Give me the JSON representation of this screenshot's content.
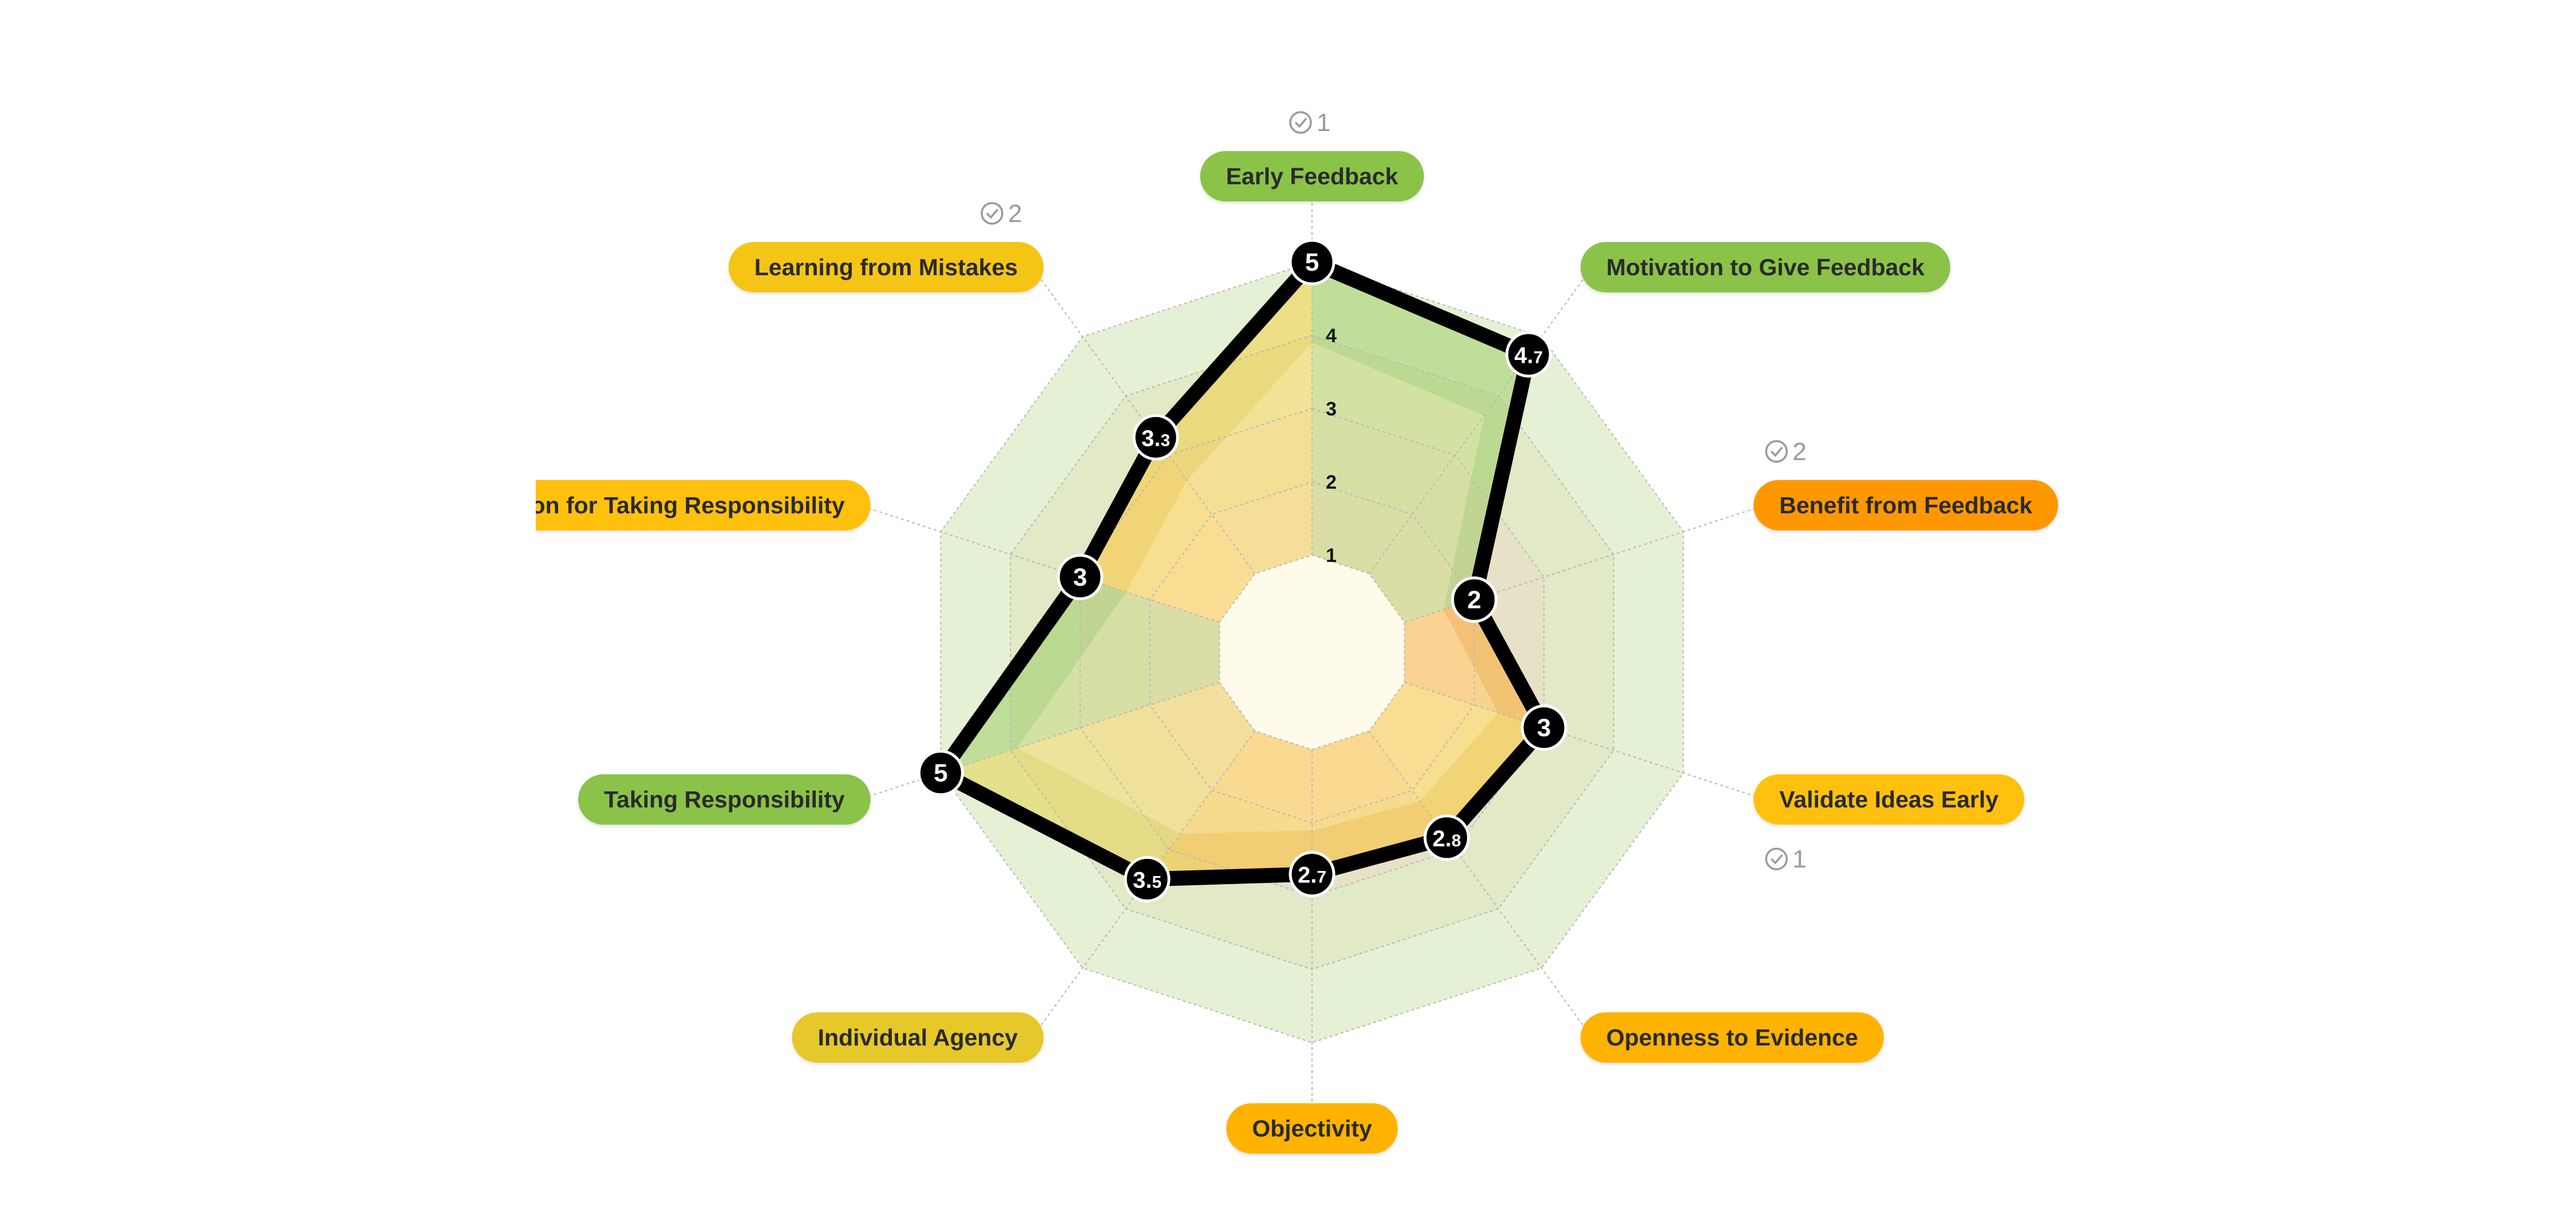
{
  "chart_data": {
    "type": "radar",
    "title": "",
    "rlim": [
      0,
      5
    ],
    "ring_ticks": [
      1,
      2,
      3,
      4,
      5
    ],
    "ring_tick_labels": [
      "1",
      "2",
      "3",
      "4"
    ],
    "categories": [
      {
        "label": "Early Feedback",
        "color": "#8BC34A",
        "checks": 1
      },
      {
        "label": "Motivation to Give Feedback",
        "color": "#8BC34A",
        "checks": null
      },
      {
        "label": "Benefit from Feedback",
        "color": "#FF9800",
        "checks": 2
      },
      {
        "label": "Validate Ideas Early",
        "color": "#FFC107",
        "checks": 1
      },
      {
        "label": "Openness to Evidence",
        "color": "#FFB300",
        "checks": null
      },
      {
        "label": "Objectivity",
        "color": "#FFB300",
        "checks": null
      },
      {
        "label": "Individual Agency",
        "color": "#E6C82A",
        "checks": null
      },
      {
        "label": "Taking Responsibility",
        "color": "#8BC34A",
        "checks": null
      },
      {
        "label": "Motivation for Taking Responsibility",
        "color": "#FFC107",
        "checks": null
      },
      {
        "label": "Learning from Mistakes",
        "color": "#F5C518",
        "checks": 2
      }
    ],
    "series": [
      {
        "values": [
          5,
          4.7,
          2,
          3,
          2.8,
          2.7,
          3.5,
          5,
          3,
          3.3
        ],
        "value_labels": [
          {
            "main": "5",
            "dec": ""
          },
          {
            "main": "4.",
            "dec": "7"
          },
          {
            "main": "2",
            "dec": ""
          },
          {
            "main": "3",
            "dec": ""
          },
          {
            "main": "2.",
            "dec": "8"
          },
          {
            "main": "2.",
            "dec": "7"
          },
          {
            "main": "3.",
            "dec": "5"
          },
          {
            "main": "5",
            "dec": ""
          },
          {
            "main": "3",
            "dec": ""
          },
          {
            "main": "3.",
            "dec": "3"
          }
        ]
      }
    ],
    "check_icon": "check-circle-icon",
    "colors": {
      "series_line": "#000000",
      "grid": "#b8b8b8",
      "label_text": "#2a2a2a",
      "check_text": "#9a9a9a",
      "band_outer": "#cfe6b0",
      "band_inner": "#fbd9d3"
    }
  }
}
